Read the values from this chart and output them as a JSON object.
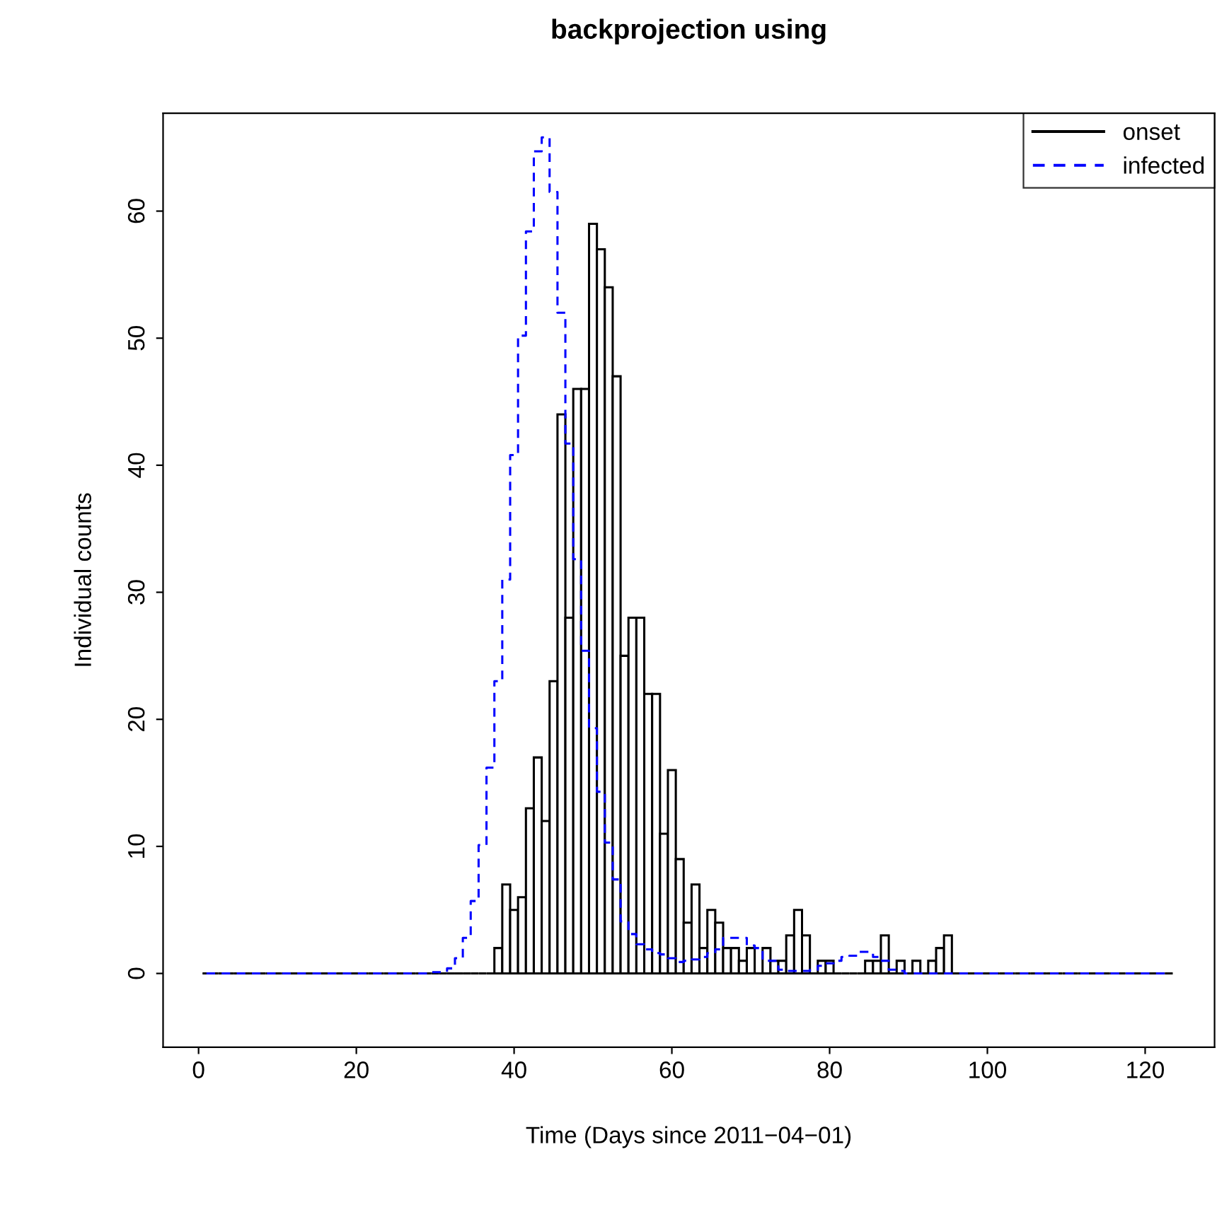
{
  "chart_data": {
    "type": "histogram",
    "title": "backprojection using",
    "xlabel": "Time (Days since 2011−04−01)",
    "ylabel": "Individual counts",
    "bins": [
      0.5,
      1.5,
      2.5,
      3.5,
      4.5,
      5.5,
      6.5,
      7.5,
      8.5,
      9.5,
      10.5,
      11.5,
      12.5,
      13.5,
      14.5,
      15.5,
      16.5,
      17.5,
      18.5,
      19.5,
      20.5,
      21.5,
      22.5,
      23.5,
      24.5,
      25.5,
      26.5,
      27.5,
      28.5,
      29.5,
      30.5,
      31.5,
      32.5,
      33.5,
      34.5,
      35.5,
      36.5,
      37.5,
      38.5,
      39.5,
      40.5,
      41.5,
      42.5,
      43.5,
      44.5,
      45.5,
      46.5,
      47.5,
      48.5,
      49.5,
      50.5,
      51.5,
      52.5,
      53.5,
      54.5,
      55.5,
      56.5,
      57.5,
      58.5,
      59.5,
      60.5,
      61.5,
      62.5,
      63.5,
      64.5,
      65.5,
      66.5,
      67.5,
      68.5,
      69.5,
      70.5,
      71.5,
      72.5,
      73.5,
      74.5,
      75.5,
      76.5,
      77.5,
      78.5,
      79.5,
      80.5,
      81.5,
      82.5,
      83.5,
      84.5,
      85.5,
      86.5,
      87.5,
      88.5,
      89.5,
      90.5,
      91.5,
      92.5,
      93.5,
      94.5,
      95.5,
      96.5,
      97.5,
      98.5,
      99.5,
      100.5,
      101.5,
      102.5,
      103.5,
      104.5,
      105.5,
      106.5,
      107.5,
      108.5,
      109.5,
      110.5,
      111.5,
      112.5,
      113.5,
      114.5,
      115.5,
      116.5,
      117.5,
      118.5,
      119.5,
      120.5,
      121.5,
      122.5,
      123.5
    ],
    "series": [
      {
        "name": "onset",
        "color": "#000000",
        "values": [
          0,
          0,
          0,
          0,
          0,
          0,
          0,
          0,
          0,
          0,
          0,
          0,
          0,
          0,
          0,
          0,
          0,
          0,
          0,
          0,
          0,
          0,
          0,
          0,
          0,
          0,
          0,
          0,
          0,
          0,
          0,
          0,
          0,
          0,
          0,
          0,
          0,
          2,
          7,
          5,
          6,
          13,
          17,
          12,
          23,
          44,
          28,
          46,
          46,
          59,
          57,
          54,
          47,
          25,
          28,
          28,
          22,
          22,
          11,
          16,
          9,
          4,
          7,
          2,
          5,
          4,
          2,
          2,
          1,
          2,
          0,
          2,
          1,
          1,
          3,
          5,
          3,
          0,
          1,
          1,
          0,
          0,
          0,
          0,
          1,
          1,
          3,
          0,
          1,
          0,
          1,
          0,
          1,
          2,
          3,
          0,
          0,
          0,
          0,
          0,
          0,
          0,
          0,
          0,
          0,
          0,
          0,
          0,
          0,
          0,
          0,
          0,
          0,
          0,
          0,
          0,
          0,
          0,
          0,
          0,
          0,
          0,
          0
        ]
      },
      {
        "name": "infected",
        "type": "step",
        "color": "#0000ff",
        "line_style": "dashed",
        "x": [
          1,
          2,
          3,
          4,
          5,
          6,
          7,
          8,
          9,
          10,
          11,
          12,
          13,
          14,
          15,
          16,
          17,
          18,
          19,
          20,
          21,
          22,
          23,
          24,
          25,
          26,
          27,
          28,
          29,
          30,
          31,
          32,
          33,
          34,
          35,
          36,
          37,
          38,
          39,
          40,
          41,
          42,
          43,
          44,
          45,
          46,
          47,
          48,
          49,
          50,
          51,
          52,
          53,
          54,
          55,
          56,
          57,
          58,
          59,
          60,
          61,
          62,
          63,
          64,
          65,
          66,
          67,
          68,
          69,
          70,
          71,
          72,
          73,
          74,
          75,
          76,
          77,
          78,
          79,
          80,
          81,
          82,
          83,
          84,
          85,
          86,
          87,
          88,
          89,
          90,
          91,
          92,
          93,
          94,
          95,
          96,
          97,
          98,
          99,
          100,
          101,
          102,
          103,
          104,
          105,
          106,
          107,
          108,
          109,
          110,
          111,
          112,
          113,
          114,
          115,
          116,
          117,
          118,
          119,
          120,
          121,
          122,
          123
        ],
        "values": [
          0,
          0,
          0,
          0,
          0,
          0,
          0,
          0,
          0,
          0,
          0,
          0,
          0,
          0,
          0,
          0,
          0,
          0,
          0,
          0,
          0,
          0,
          0,
          0,
          0,
          0,
          0,
          0,
          0,
          0.1,
          0.1,
          0.4,
          1.2,
          2.8,
          5.7,
          10.1,
          16.2,
          23,
          31,
          40.8,
          50.2,
          58.4,
          64.7,
          65.8,
          61.5,
          52,
          41.7,
          32.6,
          25.4,
          19.3,
          14.3,
          10.3,
          7.4,
          4.1,
          3.1,
          2.3,
          1.9,
          1.6,
          1.5,
          1.2,
          0.9,
          1.0,
          1.1,
          1.3,
          1.6,
          1.9,
          2.8,
          2.8,
          2.8,
          2.2,
          2.0,
          1.0,
          1.0,
          0.3,
          0.2,
          0.2,
          0.2,
          0.3,
          0.6,
          0.8,
          1.0,
          1.3,
          1.4,
          1.7,
          1.7,
          1.3,
          1.0,
          0.3,
          0.2,
          0,
          0,
          0,
          0,
          0,
          0,
          0,
          0,
          0,
          0,
          0,
          0,
          0,
          0,
          0,
          0,
          0,
          0,
          0,
          0,
          0,
          0,
          0,
          0,
          0,
          0,
          0,
          0,
          0,
          0,
          0,
          0,
          0,
          0
        ]
      }
    ],
    "xlim": [
      -4.5,
      128.8
    ],
    "ylim": [
      -5.8,
      67.7
    ],
    "xticks": [
      0,
      20,
      40,
      60,
      80,
      100,
      120
    ],
    "yticks": [
      0,
      10,
      20,
      30,
      40,
      50,
      60
    ],
    "legend": "top right",
    "grid": false
  }
}
